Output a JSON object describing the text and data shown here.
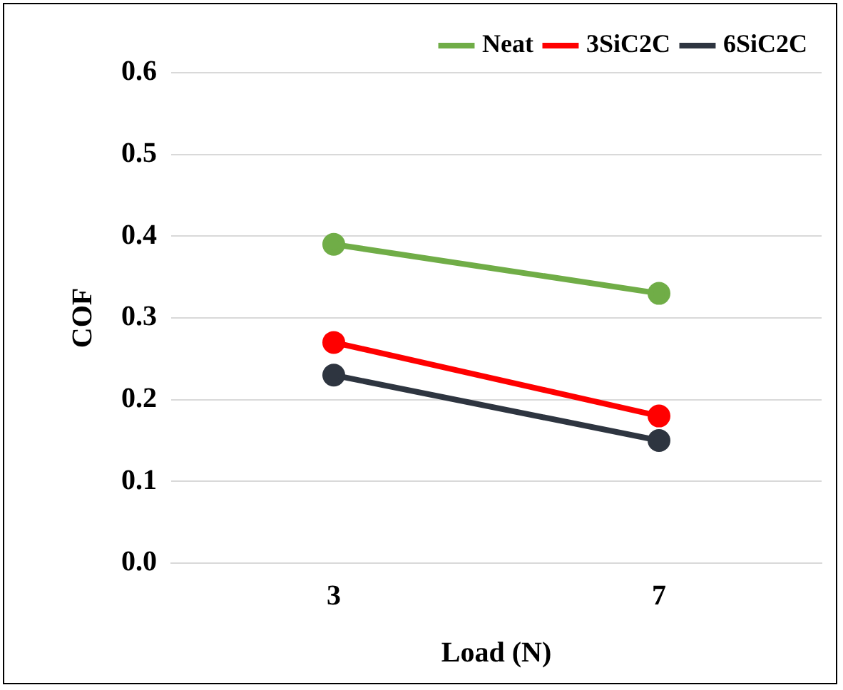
{
  "chart_data": {
    "type": "line",
    "xlabel": "Load (N)",
    "ylabel": "COF",
    "categories": [
      "3",
      "7"
    ],
    "series": [
      {
        "name": "Neat",
        "color": "#70ad47",
        "values": [
          0.39,
          0.33
        ]
      },
      {
        "name": "3SiC2C",
        "color": "#ff0000",
        "values": [
          0.27,
          0.18
        ]
      },
      {
        "name": "6SiC2C",
        "color": "#2e3540",
        "values": [
          0.23,
          0.15
        ]
      }
    ],
    "ylim": [
      0,
      0.6
    ],
    "yticks": [
      {
        "value": 0,
        "label": "0.0"
      },
      {
        "value": 0.1,
        "label": "0.1"
      },
      {
        "value": 0.2,
        "label": "0.2"
      },
      {
        "value": 0.3,
        "label": "0.3"
      },
      {
        "value": 0.4,
        "label": "0.4"
      },
      {
        "value": 0.5,
        "label": "0.5"
      },
      {
        "value": 0.6,
        "label": "0.6"
      }
    ],
    "grid": "y",
    "legend": "top right",
    "marker": "circle",
    "line_style": "solid"
  }
}
